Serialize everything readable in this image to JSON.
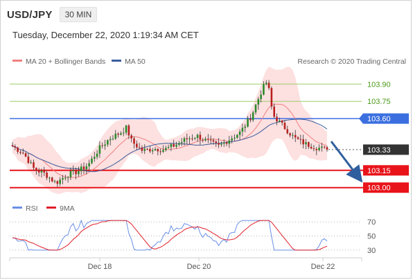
{
  "header": {
    "symbol": "USD/JPY",
    "timeframe": "30 MIN",
    "datetime": "Tuesday, December 22, 2020 1:19:34 AM CET"
  },
  "legend": {
    "ma20": "MA 20 + Bollinger Bands",
    "ma50": "MA 50",
    "rsi": "RSI",
    "ma9": "9MA",
    "credit": "Research © 2020 Trading Central"
  },
  "colors": {
    "bullish": "#2a8a2a",
    "bearish": "#b82020",
    "band_fill": "#fde0e0",
    "ma20": "#f08080",
    "ma50": "#3a5d9c",
    "pivot": "#3b6fe0",
    "support": "#e8141a",
    "target_line": "#9ccc6a",
    "target_text": "#4a9a1a",
    "arrow": "#2f5f9e",
    "rsi_line": "#6a8fe6",
    "rsi_ma": "#e0202a"
  },
  "chart_data": [
    {
      "type": "candlestick",
      "ylim": [
        102.92,
        103.98
      ],
      "x": [
        "Dec 18",
        "Dec 20",
        "Dec 22"
      ],
      "levels": [
        {
          "value": 103.9,
          "label": "103.90",
          "kind": "target"
        },
        {
          "value": 103.75,
          "label": "103.75",
          "kind": "target"
        },
        {
          "value": 103.6,
          "label": "103.60",
          "kind": "pivot"
        },
        {
          "value": 103.33,
          "label": "103.33",
          "kind": "last"
        },
        {
          "value": 103.15,
          "label": "103.15",
          "kind": "support"
        },
        {
          "value": 103.0,
          "label": "103.00",
          "kind": "support"
        }
      ],
      "forecast": {
        "from": 103.33,
        "to": 103.0
      }
    },
    {
      "type": "line",
      "series": [
        {
          "name": "RSI"
        },
        {
          "name": "9MA"
        }
      ],
      "ylim": [
        25,
        75
      ],
      "yticks": [
        30,
        50,
        70
      ],
      "x": [
        "Dec 18",
        "Dec 20",
        "Dec 22"
      ]
    }
  ]
}
